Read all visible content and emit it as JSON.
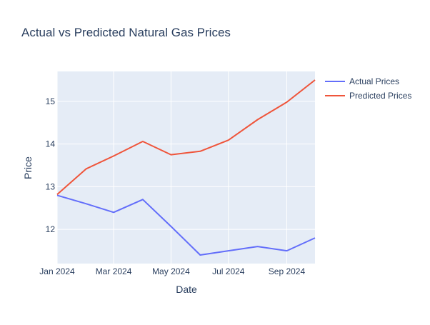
{
  "chart_data": {
    "type": "line",
    "title": "Actual vs Predicted Natural Gas Prices",
    "xlabel": "Date",
    "ylabel": "Price",
    "x": [
      "2024-01-01",
      "2024-02-01",
      "2024-03-01",
      "2024-04-01",
      "2024-05-01",
      "2024-06-01",
      "2024-07-01",
      "2024-08-01",
      "2024-09-01",
      "2024-10-01"
    ],
    "xlim": [
      "2024-01-01",
      "2024-10-01"
    ],
    "ylim": [
      11.2,
      15.7
    ],
    "xticks": [
      "2024-01-01",
      "2024-03-01",
      "2024-05-01",
      "2024-07-01",
      "2024-09-01"
    ],
    "xtick_labels": [
      "Jan 2024",
      "Mar 2024",
      "May 2024",
      "Jul 2024",
      "Sep 2024"
    ],
    "yticks": [
      12,
      13,
      14,
      15
    ],
    "ytick_labels": [
      "12",
      "13",
      "14",
      "15"
    ],
    "series": [
      {
        "name": "Actual Prices",
        "color": "#636efa",
        "values": [
          12.8,
          12.6,
          12.4,
          12.7,
          12.07,
          11.4,
          11.5,
          11.6,
          11.5,
          11.8
        ]
      },
      {
        "name": "Predicted Prices",
        "color": "#ef553b",
        "values": [
          12.82,
          13.42,
          13.72,
          14.06,
          13.75,
          13.83,
          14.09,
          14.57,
          14.98,
          15.5
        ]
      }
    ],
    "grid": true,
    "plot_background": "#e5ecf6",
    "legend_position": "top-right"
  }
}
